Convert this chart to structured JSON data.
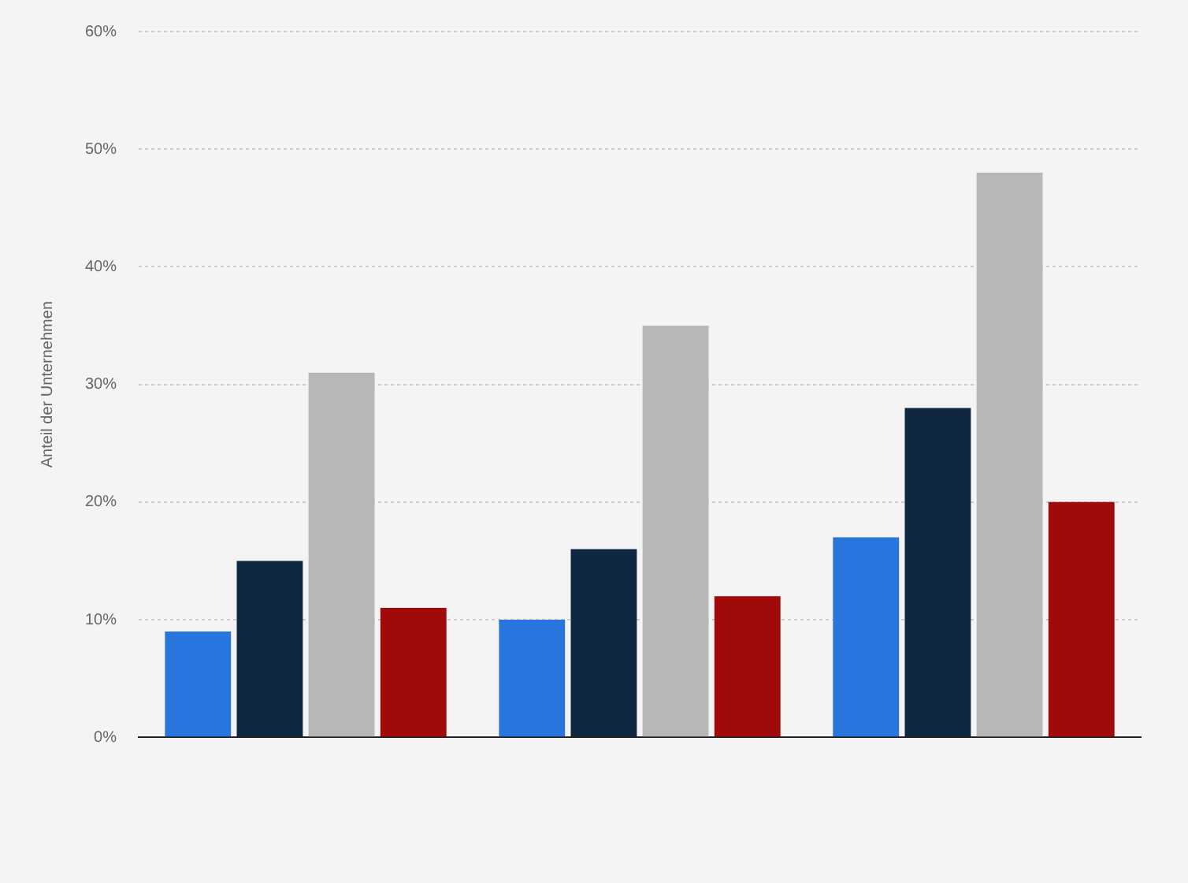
{
  "chart_data": {
    "type": "bar",
    "ylabel": "Anteil der Unternehmen",
    "categories": [
      null,
      null,
      null
    ],
    "series": [
      {
        "color": "#2876dd",
        "values": [
          9,
          10,
          17
        ]
      },
      {
        "color": "#0f2741",
        "values": [
          15,
          16,
          28
        ]
      },
      {
        "color": "#b7b7b7",
        "values": [
          31,
          35,
          48
        ]
      },
      {
        "color": "#a10a0a",
        "values": [
          11,
          12,
          20
        ]
      }
    ],
    "ylim": [
      0,
      60
    ],
    "yticks": [
      {
        "value": 0,
        "label": "0%"
      },
      {
        "value": 10,
        "label": "10%"
      },
      {
        "value": 20,
        "label": "20%"
      },
      {
        "value": 30,
        "label": "30%"
      },
      {
        "value": 40,
        "label": "40%"
      },
      {
        "value": 50,
        "label": "50%"
      },
      {
        "value": 60,
        "label": "60%"
      }
    ],
    "grid": "y",
    "legend": false
  }
}
